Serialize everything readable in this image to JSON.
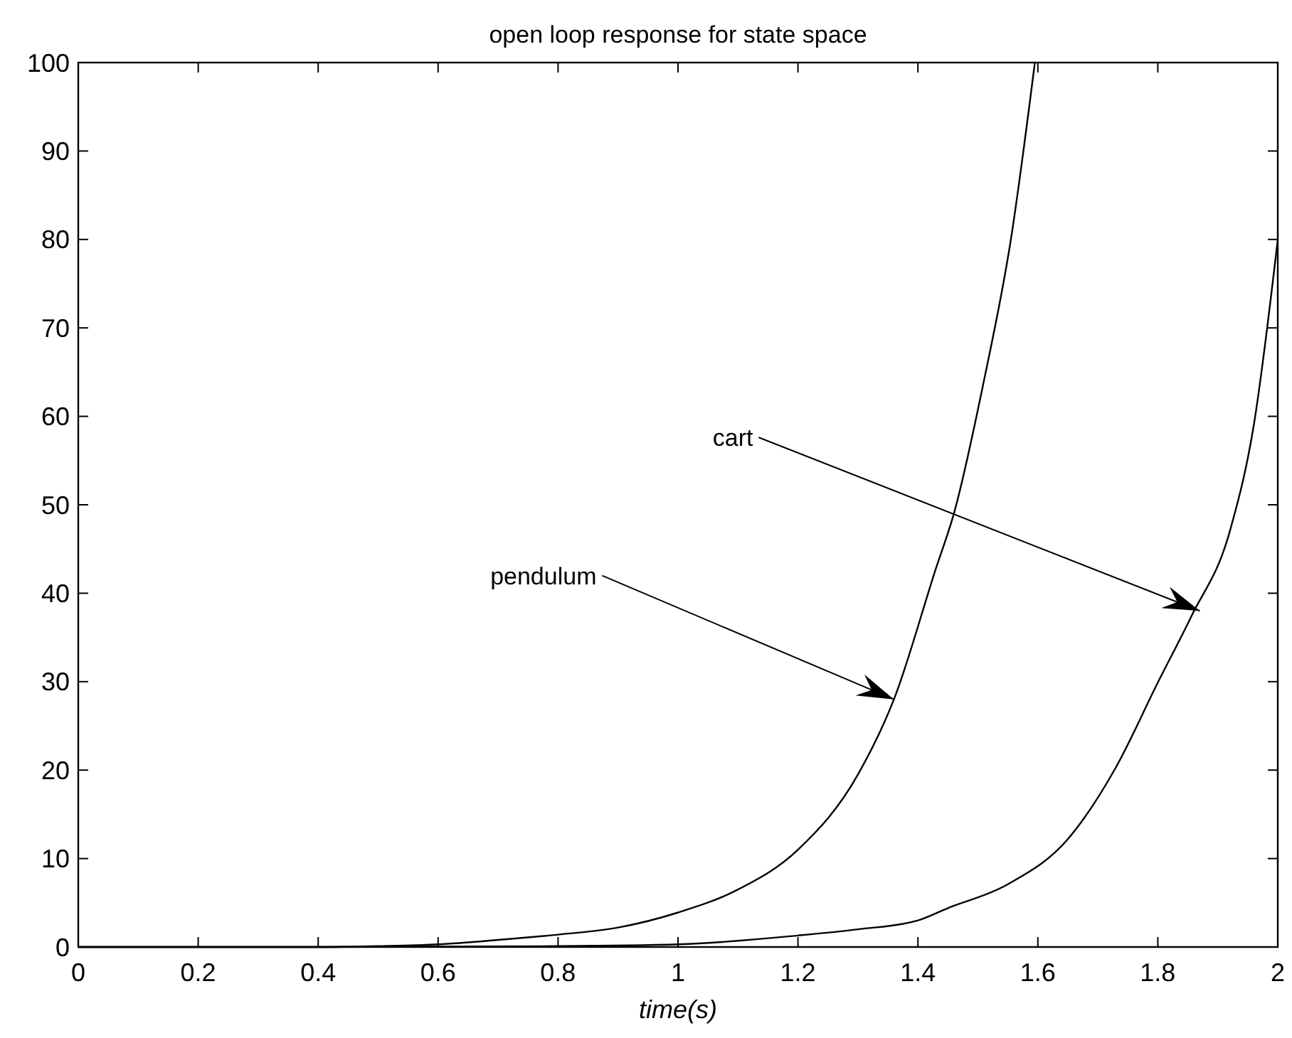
{
  "chart_data": {
    "type": "line",
    "title": "open loop response for state space",
    "xlabel": "time(s)",
    "xlim": [
      0,
      2
    ],
    "xticks": [
      0,
      0.2,
      0.4,
      0.6,
      0.8,
      1,
      1.2,
      1.4,
      1.6,
      1.8,
      2
    ],
    "ylim": [
      0,
      100
    ],
    "yticks": [
      0,
      10,
      20,
      30,
      40,
      50,
      60,
      70,
      80,
      90,
      100
    ],
    "grid": false,
    "marker": "none",
    "line_style": "solid",
    "series": [
      {
        "color": "#000000",
        "x": [
          0,
          0.2,
          0.4,
          0.5,
          0.6,
          0.7,
          0.8,
          0.9,
          1.0,
          1.1,
          1.2,
          1.3,
          1.36,
          1.43,
          1.46,
          1.51,
          1.555,
          1.595
        ],
        "values": [
          0,
          0,
          0,
          0.1,
          0.3,
          0.8,
          1.4,
          2.2,
          3.9,
          6.5,
          11,
          19.5,
          28,
          42.8,
          49,
          64,
          80,
          100
        ]
      },
      {
        "color": "#000000",
        "x": [
          0,
          0.4,
          0.8,
          1.0,
          1.2,
          1.3,
          1.4,
          1.45,
          1.55,
          1.65,
          1.73,
          1.8,
          1.856,
          1.92,
          1.96,
          2.0
        ],
        "values": [
          0,
          0,
          0.1,
          0.3,
          1.3,
          2,
          3,
          4.4,
          7.1,
          12.2,
          20.3,
          29.9,
          37.4,
          47,
          59,
          80
        ]
      }
    ],
    "annotations": [
      {
        "text": "pendulum",
        "x": 1.36,
        "y": 28
      },
      {
        "text": "cart",
        "x": 1.87,
        "y": 38
      }
    ]
  }
}
